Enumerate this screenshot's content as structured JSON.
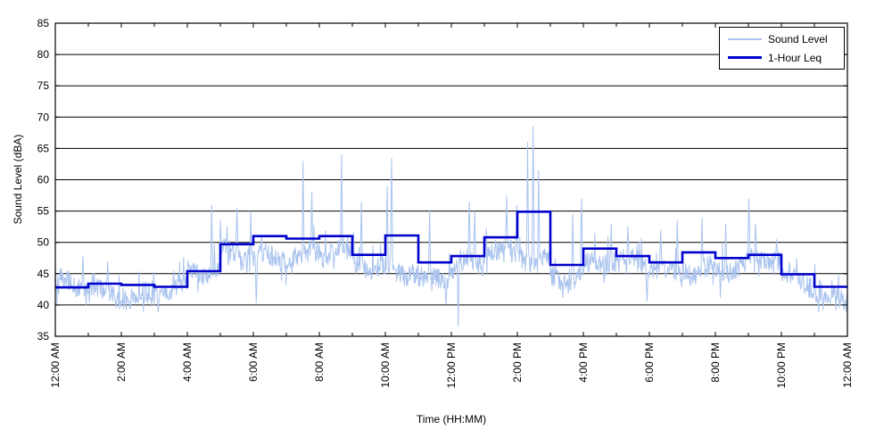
{
  "figure": {
    "background": "#ffffff",
    "border_color": "#000000",
    "text_color": "#000000"
  },
  "chart_data": {
    "type": "line",
    "title": "",
    "xlabel": "Time (HH:MM)",
    "ylabel": "Sound Level (dBA)",
    "ylim": [
      35,
      85
    ],
    "xlim_hours": [
      0,
      24
    ],
    "yticks": [
      35,
      40,
      45,
      50,
      55,
      60,
      65,
      70,
      75,
      80,
      85
    ],
    "xticks": [
      {
        "hour": 0,
        "label": "12:00 AM"
      },
      {
        "hour": 2,
        "label": "2:00 AM"
      },
      {
        "hour": 4,
        "label": "4:00 AM"
      },
      {
        "hour": 6,
        "label": "6:00 AM"
      },
      {
        "hour": 8,
        "label": "8:00 AM"
      },
      {
        "hour": 10,
        "label": "10:00 AM"
      },
      {
        "hour": 12,
        "label": "12:00 PM"
      },
      {
        "hour": 14,
        "label": "2:00 PM"
      },
      {
        "hour": 16,
        "label": "4:00 PM"
      },
      {
        "hour": 18,
        "label": "6:00 PM"
      },
      {
        "hour": 20,
        "label": "8:00 PM"
      },
      {
        "hour": 22,
        "label": "10:00 PM"
      },
      {
        "hour": 24,
        "label": "12:00 AM"
      }
    ],
    "minor_xtick_every_hours": 1,
    "grid": {
      "horizontal": true,
      "vertical": false,
      "color": "#000000"
    },
    "legend_position": "top-right-inside",
    "series": [
      {
        "name": "Sound Level",
        "kind": "minute-samples",
        "color": "#a9c3ee",
        "stroke_width": 1,
        "synthesis": {
          "seed": 20240601,
          "points_per_hour": 60,
          "hourly_typical": [
            42.5,
            42.3,
            42.4,
            42.3,
            44.3,
            47.8,
            48.6,
            48.2,
            47.6,
            45.8,
            46.3,
            45.0,
            45.8,
            47.6,
            47.8,
            45.2,
            46.4,
            45.9,
            45.5,
            46.6,
            46.0,
            46.3,
            43.6,
            41.9
          ],
          "jitter": 1.7,
          "clamp": [
            38.8,
            58
          ],
          "spikes": [
            [
              50,
              47.8
            ],
            [
              95,
              47.0
            ],
            [
              284,
              56.0
            ],
            [
              300,
              53.5
            ],
            [
              330,
              55.5
            ],
            [
              355,
              55.0
            ],
            [
              450,
              63.0
            ],
            [
              466,
              58.0
            ],
            [
              520,
              64.0
            ],
            [
              556,
              56.5
            ],
            [
              603,
              59.0
            ],
            [
              611,
              63.5
            ],
            [
              680,
              55.2
            ],
            [
              752,
              56.5
            ],
            [
              762,
              55.0
            ],
            [
              820,
              57.5
            ],
            [
              838,
              56.0
            ],
            [
              858,
              66.0
            ],
            [
              868,
              68.6
            ],
            [
              878,
              61.5
            ],
            [
              940,
              54.5
            ],
            [
              956,
              57.0
            ],
            [
              1010,
              53.0
            ],
            [
              1040,
              52.5
            ],
            [
              1100,
              52.0
            ],
            [
              1130,
              53.5
            ],
            [
              1175,
              54.0
            ],
            [
              1218,
              53.0
            ],
            [
              1260,
              57.0
            ],
            [
              1272,
              53.0
            ],
            [
              1310,
              50.5
            ],
            [
              1380,
              46.5
            ]
          ],
          "dips": [
            [
              110,
              39.5
            ],
            [
              168,
              40.3
            ],
            [
              365,
              40.3
            ],
            [
              710,
              40.1
            ],
            [
              732,
              36.6
            ],
            [
              1075,
              40.6
            ],
            [
              1395,
              39.2
            ]
          ]
        }
      },
      {
        "name": "1-Hour Leq",
        "kind": "hourly-step",
        "color": "#0000cc",
        "stroke_width": 2.6,
        "x_start_hour": 0,
        "step_hours": 1,
        "hourly_leq": [
          42.8,
          43.4,
          43.2,
          42.9,
          45.4,
          49.7,
          51.0,
          50.6,
          51.0,
          48.0,
          51.1,
          46.8,
          47.8,
          50.8,
          54.9,
          46.4,
          49.0,
          47.8,
          46.8,
          48.4,
          47.5,
          48.0,
          44.9,
          42.9
        ]
      }
    ]
  }
}
